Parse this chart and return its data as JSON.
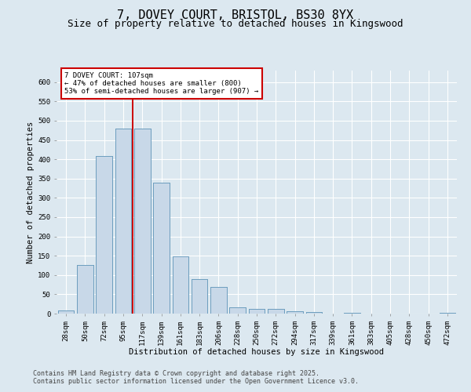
{
  "title_line1": "7, DOVEY COURT, BRISTOL, BS30 8YX",
  "title_line2": "Size of property relative to detached houses in Kingswood",
  "xlabel": "Distribution of detached houses by size in Kingswood",
  "ylabel": "Number of detached properties",
  "bar_color": "#c8d8e8",
  "bar_edge_color": "#6699bb",
  "background_color": "#dce8f0",
  "grid_color": "#ffffff",
  "categories": [
    "28sqm",
    "50sqm",
    "72sqm",
    "95sqm",
    "117sqm",
    "139sqm",
    "161sqm",
    "183sqm",
    "206sqm",
    "228sqm",
    "250sqm",
    "272sqm",
    "294sqm",
    "317sqm",
    "339sqm",
    "361sqm",
    "383sqm",
    "405sqm",
    "428sqm",
    "450sqm",
    "472sqm"
  ],
  "values": [
    8,
    127,
    408,
    480,
    480,
    340,
    148,
    90,
    70,
    17,
    13,
    13,
    7,
    5,
    0,
    3,
    0,
    0,
    0,
    0,
    3
  ],
  "ylim": [
    0,
    630
  ],
  "yticks": [
    0,
    50,
    100,
    150,
    200,
    250,
    300,
    350,
    400,
    450,
    500,
    550,
    600
  ],
  "annotation_text": "7 DOVEY COURT: 107sqm\n← 47% of detached houses are smaller (800)\n53% of semi-detached houses are larger (907) →",
  "vline_color": "#cc0000",
  "annotation_box_color": "#ffffff",
  "annotation_box_edge": "#cc0000",
  "footer_line1": "Contains HM Land Registry data © Crown copyright and database right 2025.",
  "footer_line2": "Contains public sector information licensed under the Open Government Licence v3.0.",
  "title_fontsize": 11,
  "subtitle_fontsize": 9,
  "axis_label_fontsize": 7.5,
  "tick_fontsize": 6.5,
  "annotation_fontsize": 6.5,
  "footer_fontsize": 6
}
